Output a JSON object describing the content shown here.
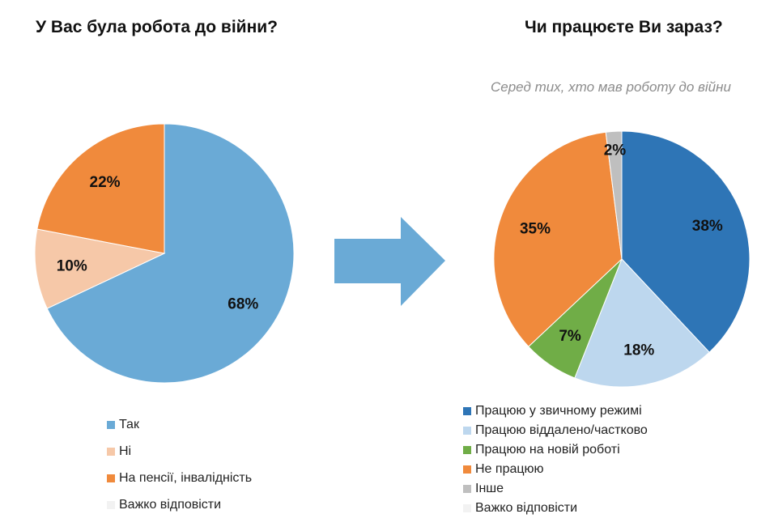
{
  "chart_data": [
    {
      "type": "pie",
      "title": "У Вас була робота до війни?",
      "slices": [
        {
          "label": "Так",
          "value": 68,
          "color": "#6aaad6",
          "data_label": "68%"
        },
        {
          "label": "Ні",
          "value": 10,
          "color": "#f6c8a8",
          "data_label": "10%"
        },
        {
          "label": "На пенсії, інвалідність",
          "value": 22,
          "color": "#f08a3c",
          "data_label": "22%"
        },
        {
          "label": "Важко відповісти",
          "value": 0,
          "color": "#f2f2f2",
          "data_label": ""
        }
      ],
      "legend": "bottom"
    },
    {
      "type": "pie",
      "title": "Чи працюєте Ви зараз?",
      "subtitle": "Серед тих, хто мав роботу до війни",
      "slices": [
        {
          "label": "Працюю у звичному режимі",
          "value": 38,
          "color": "#2e75b6",
          "data_label": "38%"
        },
        {
          "label": "Працюю віддалено/частково",
          "value": 18,
          "color": "#bdd7ee",
          "data_label": "18%"
        },
        {
          "label": "Працюю на новій роботі",
          "value": 7,
          "color": "#70ad47",
          "data_label": "7%"
        },
        {
          "label": "Не працюю",
          "value": 35,
          "color": "#f08a3c",
          "data_label": "35%"
        },
        {
          "label": "Інше",
          "value": 2,
          "color": "#bfbfbf",
          "data_label": "2%"
        },
        {
          "label": "Важко відповісти",
          "value": 0,
          "color": "#f2f2f2",
          "data_label": ""
        }
      ],
      "legend": "bottom"
    }
  ],
  "arrow_color": "#6aaad6"
}
